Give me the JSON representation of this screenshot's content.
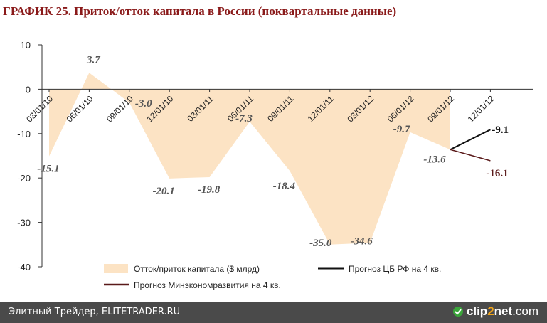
{
  "title": "ГРАФИК 25. Приток/отток капитала в России (поквартальные данные)",
  "footer": {
    "left_text": "Элитный Трейдер, ELITETRADER.RU",
    "brand_left": "clip",
    "brand_mid": "2",
    "brand_right": "net",
    "brand_suffix": ".com"
  },
  "chart_data": {
    "type": "area",
    "categories": [
      "03/01/10",
      "06/01/10",
      "09/01/10",
      "12/01/10",
      "03/01/11",
      "06/01/11",
      "09/01/11",
      "12/01/11",
      "03/01/12",
      "06/01/12",
      "09/01/12",
      "12/01/12"
    ],
    "series": [
      {
        "name": "Отток/приток капитала ($ млрд)",
        "values": [
          -15.1,
          3.7,
          -3.0,
          -20.1,
          -19.8,
          -7.3,
          -18.4,
          -35.0,
          -34.6,
          -9.7,
          -13.6,
          null
        ],
        "labels": [
          "-15.1",
          "3.7",
          "-3.0",
          "-20.1",
          "-19.8",
          "-7.3",
          "-18.4",
          "-35.0",
          "-34.6",
          "-9.7",
          "-13.6",
          ""
        ],
        "color": "#fce3c4"
      },
      {
        "name": "Прогноз ЦБ РФ на 4 кв.",
        "values": [
          null,
          null,
          null,
          null,
          null,
          null,
          null,
          null,
          null,
          null,
          -13.6,
          -9.1
        ],
        "label": "-9.1",
        "color": "#111111"
      },
      {
        "name": "Прогноз Минэкономразвития на 4 кв.",
        "values": [
          null,
          null,
          null,
          null,
          null,
          null,
          null,
          null,
          null,
          null,
          -13.6,
          -16.1
        ],
        "label": "-16.1",
        "color": "#5a1a1a"
      }
    ],
    "ylim": [
      -40,
      10
    ],
    "yticks": [
      "10",
      "0",
      "-10",
      "-20",
      "-30",
      "-40"
    ],
    "ytick_values": [
      10,
      0,
      -10,
      -20,
      -30,
      -40
    ],
    "xlabel": "",
    "ylabel": "",
    "grid": false,
    "legend_position": "bottom"
  }
}
